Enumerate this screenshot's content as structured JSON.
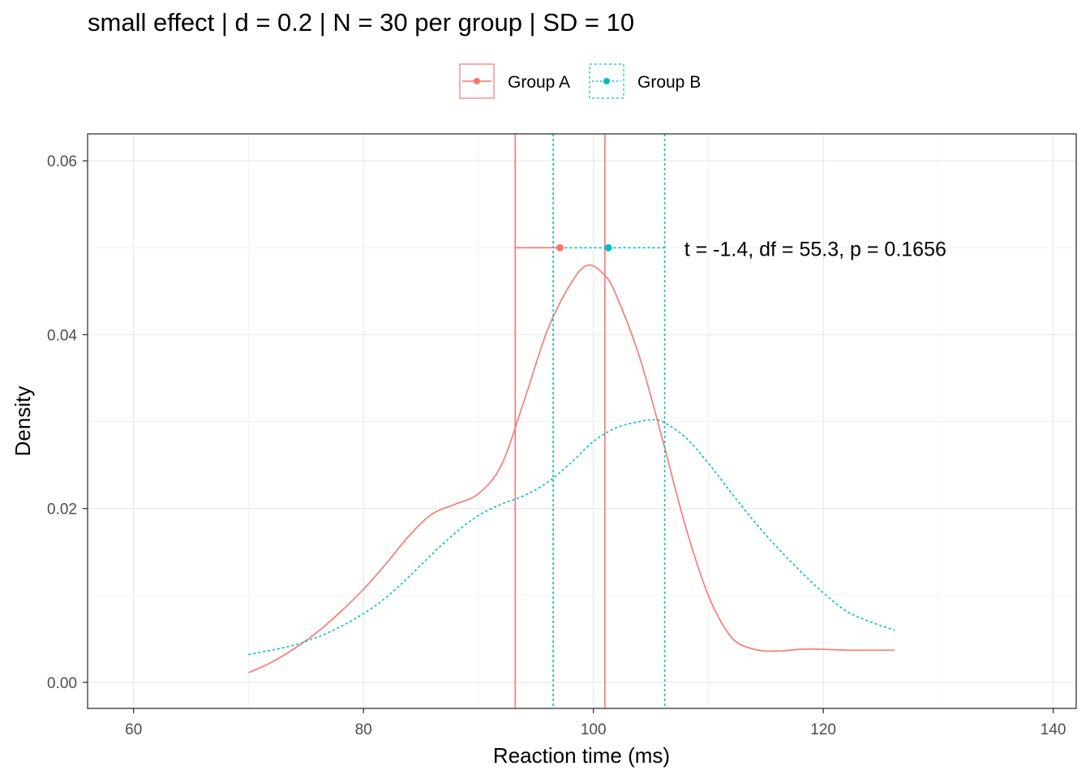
{
  "chart_data": {
    "type": "line",
    "title": "small effect | d = 0.2 | N = 30 per group | SD = 10",
    "xlabel": "Reaction time (ms)",
    "ylabel": "Density",
    "xlim": [
      56,
      142
    ],
    "ylim": [
      -0.003,
      0.0631
    ],
    "x_ticks": [
      60,
      80,
      100,
      120,
      140
    ],
    "y_ticks": [
      0.0,
      0.02,
      0.04,
      0.06
    ],
    "x_tick_labels": [
      "60",
      "80",
      "100",
      "120",
      "140"
    ],
    "y_tick_labels": [
      "0.00",
      "0.02",
      "0.04",
      "0.06"
    ],
    "grid": true,
    "legend_position": "top",
    "annotation": {
      "text": "t = -1.4, df = 55.3, p = 0.1656",
      "x": 107.2,
      "y": 0.05
    },
    "series": [
      {
        "name": "Group A",
        "color": "#F8766D",
        "line_style": "solid",
        "mean": 97.1,
        "ci": [
          93.2,
          101.0
        ],
        "x": [
          70,
          72,
          74,
          76,
          78,
          80,
          82,
          84,
          86,
          88,
          90,
          92,
          94,
          96,
          98,
          99.5,
          101,
          102,
          104,
          106,
          108,
          110,
          112,
          114,
          116,
          118,
          120,
          122,
          124,
          126.2
        ],
        "y": [
          0.0011,
          0.0023,
          0.0039,
          0.0058,
          0.0081,
          0.0107,
          0.0137,
          0.0169,
          0.0194,
          0.0205,
          0.0217,
          0.025,
          0.0325,
          0.0405,
          0.0458,
          0.048,
          0.0468,
          0.0445,
          0.0375,
          0.028,
          0.018,
          0.01,
          0.0052,
          0.0038,
          0.0036,
          0.0038,
          0.0038,
          0.0037,
          0.0037,
          0.0037
        ]
      },
      {
        "name": "Group B",
        "color": "#00BFC4",
        "line_style": "dotted",
        "mean": 101.3,
        "ci": [
          96.5,
          106.2
        ],
        "x": [
          70,
          72,
          74,
          76,
          78,
          80,
          82,
          84,
          86,
          88,
          90,
          92,
          94,
          96,
          98,
          100,
          102,
          104,
          105,
          106,
          108,
          110,
          112,
          114,
          116,
          118,
          120,
          122,
          124,
          126.2
        ],
        "y": [
          0.0032,
          0.0037,
          0.0043,
          0.0052,
          0.0064,
          0.0079,
          0.0098,
          0.0122,
          0.0148,
          0.0172,
          0.0192,
          0.0205,
          0.0215,
          0.023,
          0.0252,
          0.0277,
          0.0293,
          0.03,
          0.0302,
          0.03,
          0.0282,
          0.0252,
          0.0218,
          0.0185,
          0.0155,
          0.0128,
          0.0103,
          0.0082,
          0.007,
          0.006
        ]
      }
    ]
  }
}
